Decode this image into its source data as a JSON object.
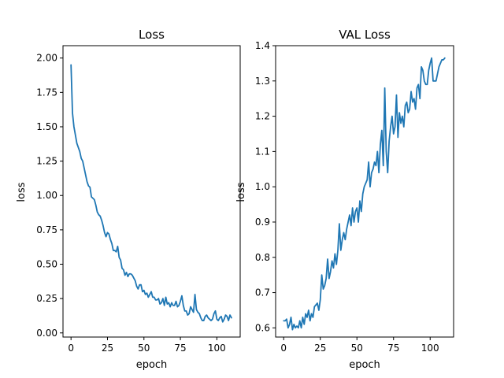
{
  "figure": {
    "background": "#ffffff"
  },
  "chart_data": [
    {
      "type": "line",
      "title": "Loss",
      "xlabel": "epoch",
      "ylabel": "loss",
      "xlim": [
        -5.5,
        116
      ],
      "ylim": [
        -0.03,
        2.09
      ],
      "xticks": [
        0,
        25,
        50,
        75,
        100
      ],
      "xtick_labels": [
        "0",
        "25",
        "50",
        "75",
        "100"
      ],
      "yticks": [
        0.0,
        0.25,
        0.5,
        0.75,
        1.0,
        1.25,
        1.5,
        1.75,
        2.0
      ],
      "ytick_labels": [
        "0.00",
        "0.25",
        "0.50",
        "0.75",
        "1.00",
        "1.25",
        "1.50",
        "1.75",
        "2.00"
      ],
      "grid": false,
      "series": [
        {
          "color": "#1f77b4",
          "x": [
            0,
            1,
            2,
            3,
            4,
            5,
            6,
            7,
            8,
            9,
            10,
            11,
            12,
            13,
            14,
            15,
            16,
            17,
            18,
            19,
            20,
            21,
            22,
            23,
            24,
            25,
            26,
            27,
            28,
            29,
            30,
            31,
            32,
            33,
            34,
            35,
            36,
            37,
            38,
            39,
            40,
            41,
            42,
            43,
            44,
            45,
            46,
            47,
            48,
            49,
            50,
            51,
            52,
            53,
            54,
            55,
            56,
            57,
            58,
            59,
            60,
            61,
            62,
            63,
            64,
            65,
            66,
            67,
            68,
            69,
            70,
            71,
            72,
            73,
            74,
            75,
            76,
            77,
            78,
            79,
            80,
            81,
            82,
            83,
            84,
            85,
            86,
            87,
            88,
            89,
            90,
            91,
            92,
            93,
            94,
            95,
            96,
            97,
            98,
            99,
            100,
            101,
            102,
            103,
            104,
            105,
            106,
            107,
            108,
            109,
            110
          ],
          "y": [
            1.95,
            1.6,
            1.5,
            1.44,
            1.38,
            1.35,
            1.32,
            1.27,
            1.25,
            1.2,
            1.15,
            1.1,
            1.07,
            1.06,
            0.99,
            0.98,
            0.97,
            0.93,
            0.88,
            0.86,
            0.85,
            0.82,
            0.78,
            0.73,
            0.7,
            0.73,
            0.72,
            0.68,
            0.65,
            0.6,
            0.6,
            0.59,
            0.63,
            0.55,
            0.53,
            0.47,
            0.46,
            0.42,
            0.44,
            0.41,
            0.43,
            0.43,
            0.42,
            0.4,
            0.38,
            0.34,
            0.32,
            0.35,
            0.35,
            0.3,
            0.31,
            0.28,
            0.29,
            0.26,
            0.28,
            0.3,
            0.26,
            0.26,
            0.24,
            0.24,
            0.25,
            0.21,
            0.22,
            0.25,
            0.2,
            0.26,
            0.21,
            0.22,
            0.19,
            0.22,
            0.2,
            0.2,
            0.23,
            0.19,
            0.2,
            0.23,
            0.27,
            0.2,
            0.16,
            0.16,
            0.13,
            0.14,
            0.19,
            0.17,
            0.15,
            0.28,
            0.17,
            0.15,
            0.14,
            0.11,
            0.09,
            0.09,
            0.12,
            0.13,
            0.11,
            0.1,
            0.09,
            0.1,
            0.14,
            0.16,
            0.1,
            0.09,
            0.11,
            0.12,
            0.08,
            0.1,
            0.13,
            0.12,
            0.09,
            0.13,
            0.11
          ]
        }
      ]
    },
    {
      "type": "line",
      "title": "VAL Loss",
      "xlabel": "epoch",
      "ylabel": "loss",
      "xlim": [
        -5.5,
        116
      ],
      "ylim": [
        0.574,
        1.4
      ],
      "xticks": [
        0,
        25,
        50,
        75,
        100
      ],
      "xtick_labels": [
        "0",
        "25",
        "50",
        "75",
        "100"
      ],
      "yticks": [
        0.6,
        0.7,
        0.8,
        0.9,
        1.0,
        1.1,
        1.2,
        1.3,
        1.4
      ],
      "ytick_labels": [
        "0.6",
        "0.7",
        "0.8",
        "0.9",
        "1.0",
        "1.1",
        "1.2",
        "1.3",
        "1.4"
      ],
      "grid": false,
      "series": [
        {
          "color": "#1f77b4",
          "x": [
            0,
            1,
            2,
            3,
            4,
            5,
            6,
            7,
            8,
            9,
            10,
            11,
            12,
            13,
            14,
            15,
            16,
            17,
            18,
            19,
            20,
            21,
            22,
            23,
            24,
            25,
            26,
            27,
            28,
            29,
            30,
            31,
            32,
            33,
            34,
            35,
            36,
            37,
            38,
            39,
            40,
            41,
            42,
            43,
            44,
            45,
            46,
            47,
            48,
            49,
            50,
            51,
            52,
            53,
            54,
            55,
            56,
            57,
            58,
            59,
            60,
            61,
            62,
            63,
            64,
            65,
            66,
            67,
            68,
            69,
            70,
            71,
            72,
            73,
            74,
            75,
            76,
            77,
            78,
            79,
            80,
            81,
            82,
            83,
            84,
            85,
            86,
            87,
            88,
            89,
            90,
            91,
            92,
            93,
            94,
            95,
            96,
            97,
            98,
            99,
            100,
            101,
            102,
            103,
            104,
            105,
            106,
            107,
            108,
            109,
            110
          ],
          "y": [
            0.62,
            0.62,
            0.625,
            0.6,
            0.61,
            0.63,
            0.595,
            0.61,
            0.6,
            0.605,
            0.6,
            0.62,
            0.6,
            0.63,
            0.61,
            0.64,
            0.63,
            0.65,
            0.62,
            0.64,
            0.63,
            0.66,
            0.665,
            0.67,
            0.65,
            0.68,
            0.75,
            0.71,
            0.72,
            0.74,
            0.795,
            0.74,
            0.76,
            0.79,
            0.77,
            0.81,
            0.78,
            0.82,
            0.895,
            0.82,
            0.85,
            0.87,
            0.85,
            0.88,
            0.9,
            0.92,
            0.89,
            0.94,
            0.9,
            0.93,
            0.94,
            0.9,
            0.96,
            0.93,
            0.98,
            1.0,
            1.01,
            1.02,
            1.07,
            1.0,
            1.04,
            1.05,
            1.07,
            1.06,
            1.1,
            1.04,
            1.12,
            1.16,
            1.06,
            1.28,
            1.1,
            1.04,
            1.13,
            1.17,
            1.2,
            1.15,
            1.17,
            1.26,
            1.14,
            1.21,
            1.18,
            1.2,
            1.17,
            1.23,
            1.24,
            1.21,
            1.22,
            1.27,
            1.24,
            1.25,
            1.22,
            1.28,
            1.29,
            1.25,
            1.34,
            1.33,
            1.3,
            1.29,
            1.29,
            1.33,
            1.35,
            1.365,
            1.3,
            1.3,
            1.3,
            1.32,
            1.34,
            1.35,
            1.36,
            1.36,
            1.365
          ]
        }
      ]
    }
  ]
}
